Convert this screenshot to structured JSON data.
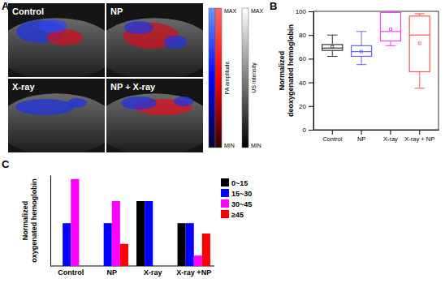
{
  "chart_data": [
    {
      "type": "image",
      "panel": "A",
      "images": [
        "Control",
        "NP",
        "X-ray",
        "NP + X-ray"
      ],
      "colorbars": [
        {
          "label": "PA amplitude",
          "max": "MAX",
          "min": "MIN"
        },
        {
          "label": "US intensity",
          "max": "MAX",
          "min": "MIN"
        }
      ]
    },
    {
      "type": "box",
      "panel": "B",
      "y_label": "Normalized deoxygenated hemoglobin",
      "categories": [
        "Control",
        "NP",
        "X-ray",
        "X-ray + NP"
      ],
      "colors": [
        "#333333",
        "#6666ff",
        "#ee44ee",
        "#ff5555"
      ],
      "min": [
        62,
        55,
        71,
        35
      ],
      "q1": [
        67,
        62,
        75,
        49
      ],
      "median": [
        69,
        66,
        83,
        80
      ],
      "q3": [
        72,
        71,
        99,
        96
      ],
      "max": [
        80,
        83,
        100,
        98
      ],
      "mean": [
        70,
        66,
        85,
        73
      ],
      "ylim": [
        0,
        100
      ],
      "yticks": [
        0,
        20,
        40,
        60,
        80,
        100
      ]
    },
    {
      "type": "bar",
      "panel": "C",
      "y_label": "Normalized oxygenated hemoglobin",
      "categories": [
        "Control",
        "NP",
        "X-ray",
        "X-ray +NP"
      ],
      "series": [
        {
          "name": "0~15",
          "color": "#000000",
          "values": [
            0,
            0,
            50,
            33
          ]
        },
        {
          "name": "15~30",
          "color": "#0000ff",
          "values": [
            33,
            33,
            50,
            33
          ]
        },
        {
          "name": "30~45",
          "color": "#ff00ff",
          "values": [
            67,
            50,
            0,
            8
          ]
        },
        {
          "name": "≥45",
          "color": "#ff0000",
          "values": [
            0,
            17,
            0,
            25
          ]
        }
      ],
      "ylim": [
        0,
        70
      ],
      "tick_labels": "x",
      "legend": "top-right"
    }
  ]
}
